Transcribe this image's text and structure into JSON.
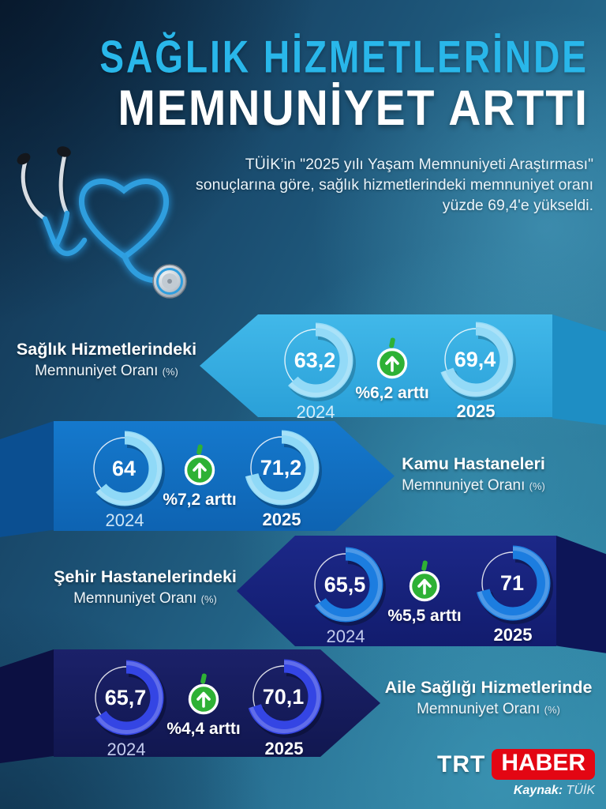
{
  "header": {
    "title_line1": "SAĞLIK HİZMETLERİNDE",
    "title_line2": "MEMNUNİYET ARTTI",
    "subtitle": "TÜİK’in \"2025 yılı Yaşam Memnuniyeti Araştırması\" sonuçlarına göre, sağlık hizmetlerindeki memnuniyet oranı yüzde 69,4'e yükseldi."
  },
  "icons": {
    "stethoscope": "heart-stethoscope",
    "increase": "arrow-up-circle-with-stem"
  },
  "colors": {
    "accent_cyan": "#29b7ea",
    "badge_green": "#2eb135",
    "trt_red": "#e30613",
    "background_navy": "#10304d",
    "background_teal": "#2e84a3"
  },
  "chart_data": {
    "type": "pie",
    "subtype": "paired-donut-gauges",
    "unit": "%",
    "categories": [
      "2024",
      "2025"
    ],
    "series": [
      {
        "name": "Sağlık Hizmetlerindeki Memnuniyet Oranı (%)",
        "values": [
          63.2,
          69.4
        ],
        "change_pct": 6.2
      },
      {
        "name": "Kamu Hastaneleri Memnuniyet Oranı (%)",
        "values": [
          64,
          71.2
        ],
        "change_pct": 7.2
      },
      {
        "name": "Şehir Hastanelerindeki Memnuniyet Oranı (%)",
        "values": [
          65.5,
          71
        ],
        "change_pct": 5.5
      },
      {
        "name": "Aile Sağlığı Hizmetlerinde Memnuniyet Oranı (%)",
        "values": [
          65.7,
          70.1
        ],
        "change_pct": 4.4
      }
    ],
    "title": "Sağlık Hizmetlerinde Memnuniyet Arttı",
    "legend_position": "none",
    "grid": false
  },
  "rows": [
    {
      "side": "left",
      "label_line1": "Sağlık Hizmetlerindeki",
      "label_line2": "Memnuniyet Oranı",
      "label_unit": "(%)",
      "donut_2024": {
        "value_label": "63,2",
        "pct": 63.2,
        "year": "2024"
      },
      "donut_2025": {
        "value_label": "69,4",
        "pct": 69.4,
        "year": "2025"
      },
      "change_label": "%6,2 arttı",
      "colors": {
        "banner_top": "#41b8e9",
        "banner_bottom": "#2aa0d8",
        "fold": "#1e8ec4",
        "arc": "#93daf7",
        "arc_shadow": "#25708f",
        "year_dim": "#d6edf9"
      }
    },
    {
      "side": "right",
      "label_line1": "Kamu Hastaneleri",
      "label_line2": "Memnuniyet Oranı",
      "label_unit": "(%)",
      "donut_2024": {
        "value_label": "64",
        "pct": 64,
        "year": "2024"
      },
      "donut_2025": {
        "value_label": "71,2",
        "pct": 71.2,
        "year": "2025"
      },
      "change_label": "%7,2 arttı",
      "colors": {
        "banner_top": "#1579cd",
        "banner_bottom": "#0e63b2",
        "fold": "#0b4f91",
        "arc": "#8fd9f7",
        "arc_shadow": "#0b416f",
        "year_dim": "#cfe6f6"
      }
    },
    {
      "side": "left",
      "label_line1": "Şehir Hastanelerindeki",
      "label_line2": "Memnuniyet Oranı",
      "label_unit": "(%)",
      "donut_2024": {
        "value_label": "65,5",
        "pct": 65.5,
        "year": "2024"
      },
      "donut_2025": {
        "value_label": "71",
        "pct": 71,
        "year": "2025"
      },
      "change_label": "%5,5 arttı",
      "colors": {
        "banner_top": "#1c2888",
        "banner_bottom": "#121c6e",
        "fold": "#0d1557",
        "arc": "#1c7de0",
        "arc_shadow": "#0a1238",
        "year_dim": "#c5cdee"
      }
    },
    {
      "side": "right",
      "label_line1": "Aile Sağlığı Hizmetlerinde",
      "label_line2": "Memnuniyet Oranı",
      "label_unit": "(%)",
      "donut_2024": {
        "value_label": "65,7",
        "pct": 65.7,
        "year": "2024"
      },
      "donut_2025": {
        "value_label": "70,1",
        "pct": 70.1,
        "year": "2025"
      },
      "change_label": "%4,4 arttı",
      "colors": {
        "banner_top": "#1b2169",
        "banner_bottom": "#111750",
        "fold": "#0c1042",
        "arc": "#3445e4",
        "arc_shadow": "#070c30",
        "year_dim": "#c5cdee"
      }
    }
  ],
  "footer": {
    "logo_prefix": "TRT",
    "logo_box": "HABER",
    "source_label": "Kaynak:",
    "source_value": "TÜİK"
  }
}
